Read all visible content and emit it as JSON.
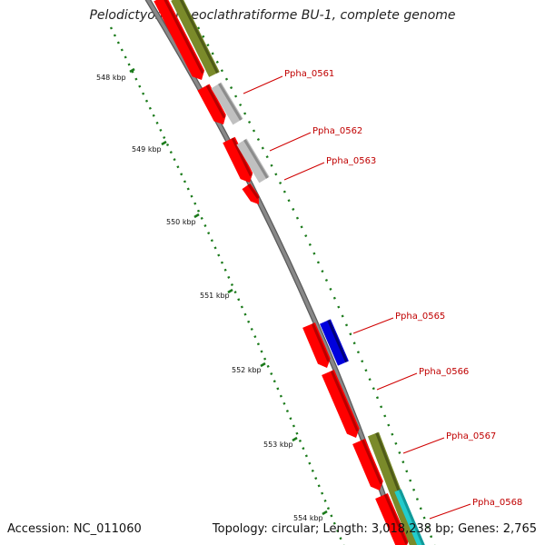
{
  "title": "Pelodictyon phaeoclathratiforme BU-1, complete genome",
  "footer": {
    "accession": "Accession: NC_011060",
    "summary": "Topology: circular; Length: 3,018,238 bp; Genes: 2,765"
  },
  "colors": {
    "backbone": "#888888",
    "backbone_edge": "#5a5a5a",
    "ticks": "#1a7a1a",
    "cds": "#ff0000",
    "cds_shade": "#b80000",
    "rna": "#c0c0c0",
    "rna_shade": "#8c8c8c",
    "ncrna": "#0000dd",
    "ncrna_shade": "#00007a",
    "gene": "#7a8a2a",
    "gene_shade": "#4e5a18",
    "cyan": "#22cccc",
    "label_line": "#d00000",
    "label_text": "#c00000"
  },
  "scale_labels": [
    "548 kbp",
    "549 kbp",
    "550 kbp",
    "551 kbp",
    "552 kbp",
    "553 kbp",
    "554 kbp"
  ],
  "gene_labels": [
    "Ppha_0561",
    "Ppha_0562",
    "Ppha_0563",
    "Ppha_0565",
    "Ppha_0566",
    "Ppha_0567",
    "Ppha_0568"
  ]
}
